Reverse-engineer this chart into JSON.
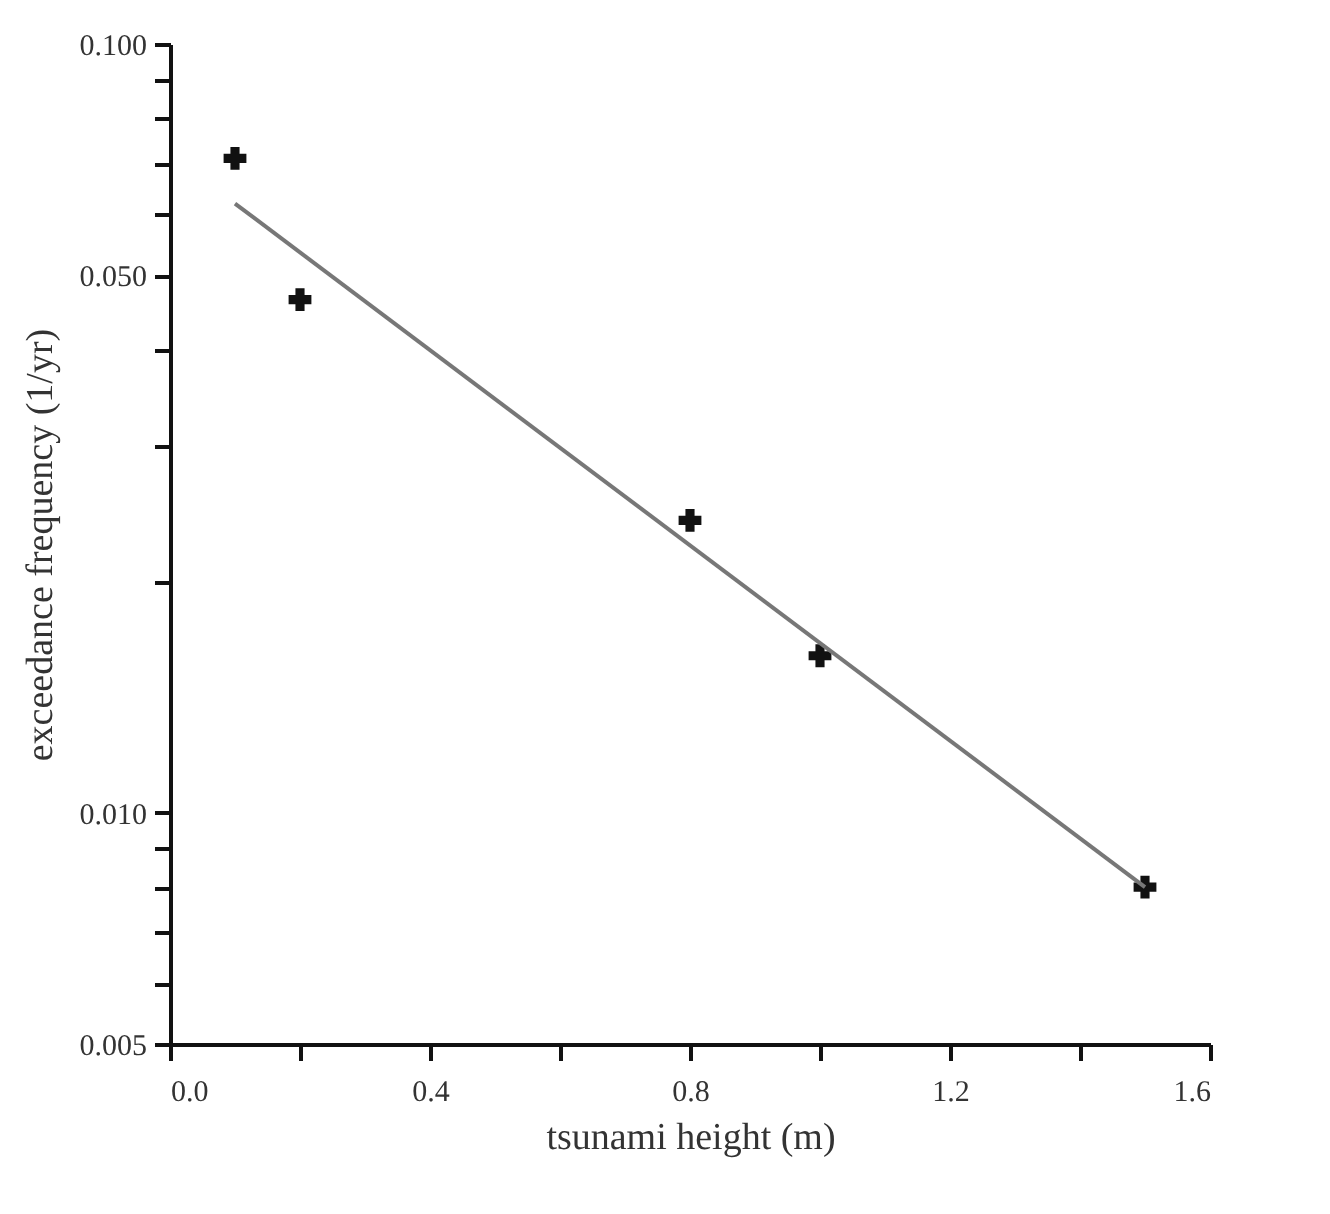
{
  "chart_data": {
    "type": "scatter",
    "xlabel": "tsunami height (m)",
    "ylabel": "exceedance frequency (1/yr)",
    "log": "y",
    "xlim": [
      0,
      1.6
    ],
    "xticks": [
      {
        "value": 0,
        "label": "0.0"
      },
      {
        "value": 0.2,
        "label": null
      },
      0.4,
      {
        "value": 0.6,
        "label": null
      },
      0.8,
      {
        "value": 1,
        "label": null
      },
      1.2,
      {
        "value": 1.4,
        "label": null
      },
      1.6
    ],
    "ylim": [
      0.005,
      0.1
    ],
    "yticks": [
      {
        "value": 0.005,
        "label": "0.005"
      },
      {
        "value": 0.006,
        "label": null
      },
      {
        "value": 0.007,
        "label": null
      },
      {
        "value": 0.008,
        "label": null
      },
      {
        "value": 0.009,
        "label": null
      },
      {
        "value": 0.01,
        "label": "0.010"
      },
      {
        "value": 0.02,
        "label": null
      },
      {
        "value": 0.03,
        "label": null
      },
      {
        "value": 0.04,
        "label": null
      },
      {
        "value": 0.05,
        "label": "0.050"
      },
      {
        "value": 0.06,
        "label": null
      },
      {
        "value": 0.07,
        "label": null
      },
      {
        "value": 0.08,
        "label": null
      },
      {
        "value": 0.09,
        "label": null
      },
      {
        "value": 0.1,
        "label": "0.100"
      }
    ],
    "grid": false,
    "marker": "cross",
    "series": [
      {
        "color": "#111111",
        "x": [
          0.1,
          0.2,
          0.8,
          1.0,
          1.5
        ],
        "values": [
          0.071,
          0.0465,
          0.024,
          0.016,
          0.008
        ]
      },
      {
        "type": "line",
        "color": "#777777",
        "line_style": "solid",
        "marker": "none",
        "x": [
          0.1,
          1.5
        ],
        "values": [
          0.062,
          0.008
        ]
      }
    ]
  }
}
